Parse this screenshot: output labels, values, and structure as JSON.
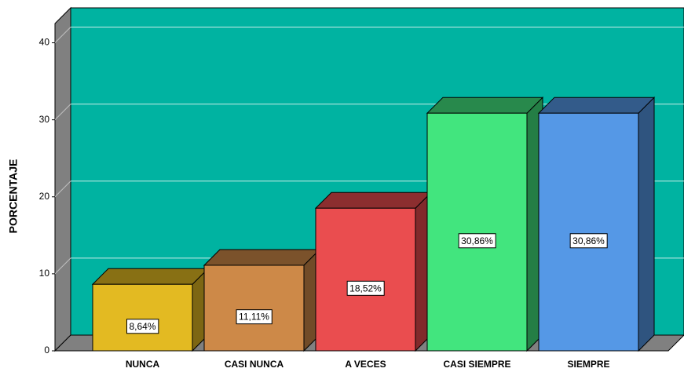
{
  "chart_data": {
    "type": "bar3d",
    "y_label": "PORCENTAJE",
    "categories": [
      "NUNCA",
      "CASI NUNCA",
      "A VECES",
      "CASI SIEMPRE",
      "SIEMPRE"
    ],
    "values": [
      8.64,
      11.11,
      18.52,
      30.86,
      30.86
    ],
    "value_labels": [
      "8,64%",
      "11,11%",
      "18,52%",
      "30,86%",
      "30,86%"
    ],
    "colors": [
      "#e3ba22",
      "#cd8948",
      "#ea4d4f",
      "#42e57e",
      "#5598e6"
    ],
    "background": "#00b3a1",
    "ylim": [
      0,
      42.5
    ],
    "yticks": [
      0,
      10,
      20,
      30,
      40
    ],
    "grid": true
  }
}
